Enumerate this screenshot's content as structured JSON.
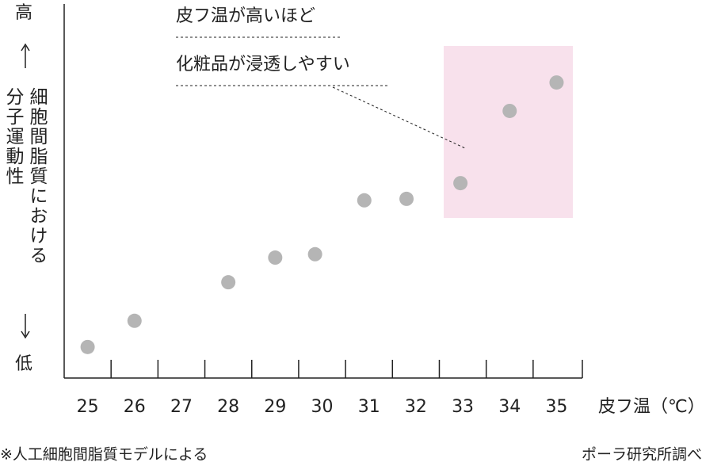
{
  "chart_data": {
    "type": "scatter",
    "y_label_top": "高",
    "y_label_bottom": "低",
    "y_label": [
      "細胞間脂質における",
      "分子運動性"
    ],
    "x_label": "皮フ温（℃）",
    "annotations": [
      "皮フ温が高いほど",
      "化粧品が浸透しやすい"
    ],
    "x": [
      25,
      26,
      28,
      29,
      29.85,
      30.9,
      31.8,
      32.95,
      34,
      35
    ],
    "values": [
      8.3,
      15.3,
      25.6,
      32.2,
      33.1,
      47.5,
      47.9,
      52.1,
      71.4,
      79.0
    ],
    "color": "#b5b5b5",
    "xlim": [
      24.5,
      35.55
    ],
    "xticks": [
      25,
      26,
      27,
      28,
      29,
      30,
      31,
      32,
      33,
      34,
      35
    ],
    "ylim": [
      0,
      100
    ],
    "footnote_left": "※人工細胞間脂質モデルによる",
    "footnote_right": "ポーラ研究所調べ"
  }
}
